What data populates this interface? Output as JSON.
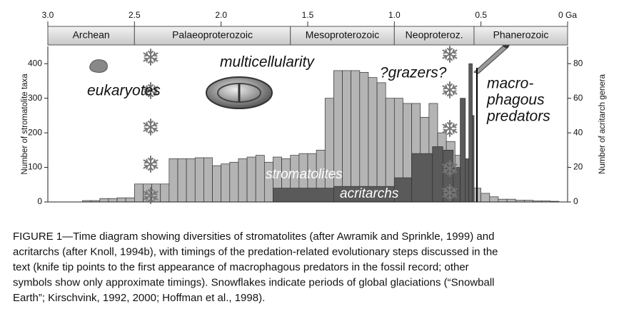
{
  "chart_data": {
    "type": "histogram",
    "xlim": [
      3.0,
      0
    ],
    "xticks": [
      {
        "value": 3,
        "label": "3.0"
      },
      2.5,
      {
        "value": 2,
        "label": "2.0"
      },
      1.5,
      {
        "value": 1,
        "label": "1.0"
      },
      0.5,
      {
        "value": 0,
        "label": "0 Ga"
      }
    ],
    "eras": [
      {
        "name": "Archean",
        "start": 3.0,
        "end": 2.5
      },
      {
        "name": "Palaeoproterozoic",
        "start": 2.5,
        "end": 1.6
      },
      {
        "name": "Mesoproterozoic",
        "start": 1.6,
        "end": 1.0
      },
      {
        "name": "Neoproteroz.",
        "start": 1.0,
        "end": 0.54
      },
      {
        "name": "Phanerozoic",
        "start": 0.54,
        "end": 0
      }
    ],
    "ylabel": "Number of stromatolite taxa",
    "y2label": "Number of acritarch genera",
    "ylim": [
      0,
      450
    ],
    "yticks": [
      0,
      100,
      200,
      300,
      400
    ],
    "y2lim": [
      0,
      90
    ],
    "y2ticks": [
      0,
      20,
      40,
      60,
      80
    ],
    "series": [
      {
        "name": "stromatolites",
        "color": "#b4b4b4",
        "bins": [
          2.8,
          2.75,
          2.7,
          2.65,
          2.6,
          2.55,
          2.5,
          2.45,
          2.4,
          2.35,
          2.3,
          2.25,
          2.2,
          2.15,
          2.1,
          2.05,
          2.0,
          1.95,
          1.9,
          1.85,
          1.8,
          1.75,
          1.7,
          1.65,
          1.6,
          1.55,
          1.5,
          1.45,
          1.4,
          1.35,
          1.3,
          1.25,
          1.2,
          1.15,
          1.1,
          1.05,
          1.0,
          0.95,
          0.9,
          0.85,
          0.8,
          0.75,
          0.7,
          0.65,
          0.6,
          0.55,
          0.5,
          0.45,
          0.4,
          0.35,
          0.3,
          0.25,
          0.2,
          0.15,
          0.1,
          0.05
        ],
        "values": [
          4,
          4,
          10,
          10,
          12,
          12,
          52,
          52,
          52,
          52,
          125,
          125,
          125,
          128,
          128,
          105,
          110,
          115,
          125,
          130,
          135,
          115,
          130,
          125,
          135,
          140,
          140,
          150,
          300,
          380,
          380,
          380,
          375,
          360,
          345,
          300,
          300,
          285,
          285,
          245,
          285,
          200,
          175,
          135,
          95,
          40,
          25,
          15,
          8,
          8,
          5,
          5,
          3,
          3,
          2
        ]
      },
      {
        "name": "acritarchs",
        "color": "#5a5a5a",
        "axis": "y2",
        "bins": [
          1.7,
          1.35,
          1.0,
          0.9,
          0.78,
          0.72,
          0.66,
          0.62,
          0.59,
          0.57,
          0.55,
          0.54
        ],
        "values": [
          8,
          9,
          14,
          28,
          32,
          30,
          20,
          60,
          25,
          80,
          50
        ]
      }
    ],
    "annotations": [
      "eukaryotes",
      "multicellularity",
      "?grazers?",
      "macro-",
      "phagous",
      "predators"
    ]
  },
  "caption": {
    "lines": [
      "FIGURE 1—Time diagram showing diversities of stromatolites (after Awramik and Sprinkle, 1999) and",
      "acritarchs (after Knoll, 1994b), with timings of the predation-related evolutionary steps discussed in the",
      "text (knife tip points to the first appearance of macrophagous predators in the fossil record; other",
      "symbols show only approximate timings). Snowflakes indicate periods of global glaciations (“Snowball",
      "Earth”; Kirschvink, 1992, 2000; Hoffman et al., 1998)."
    ]
  }
}
